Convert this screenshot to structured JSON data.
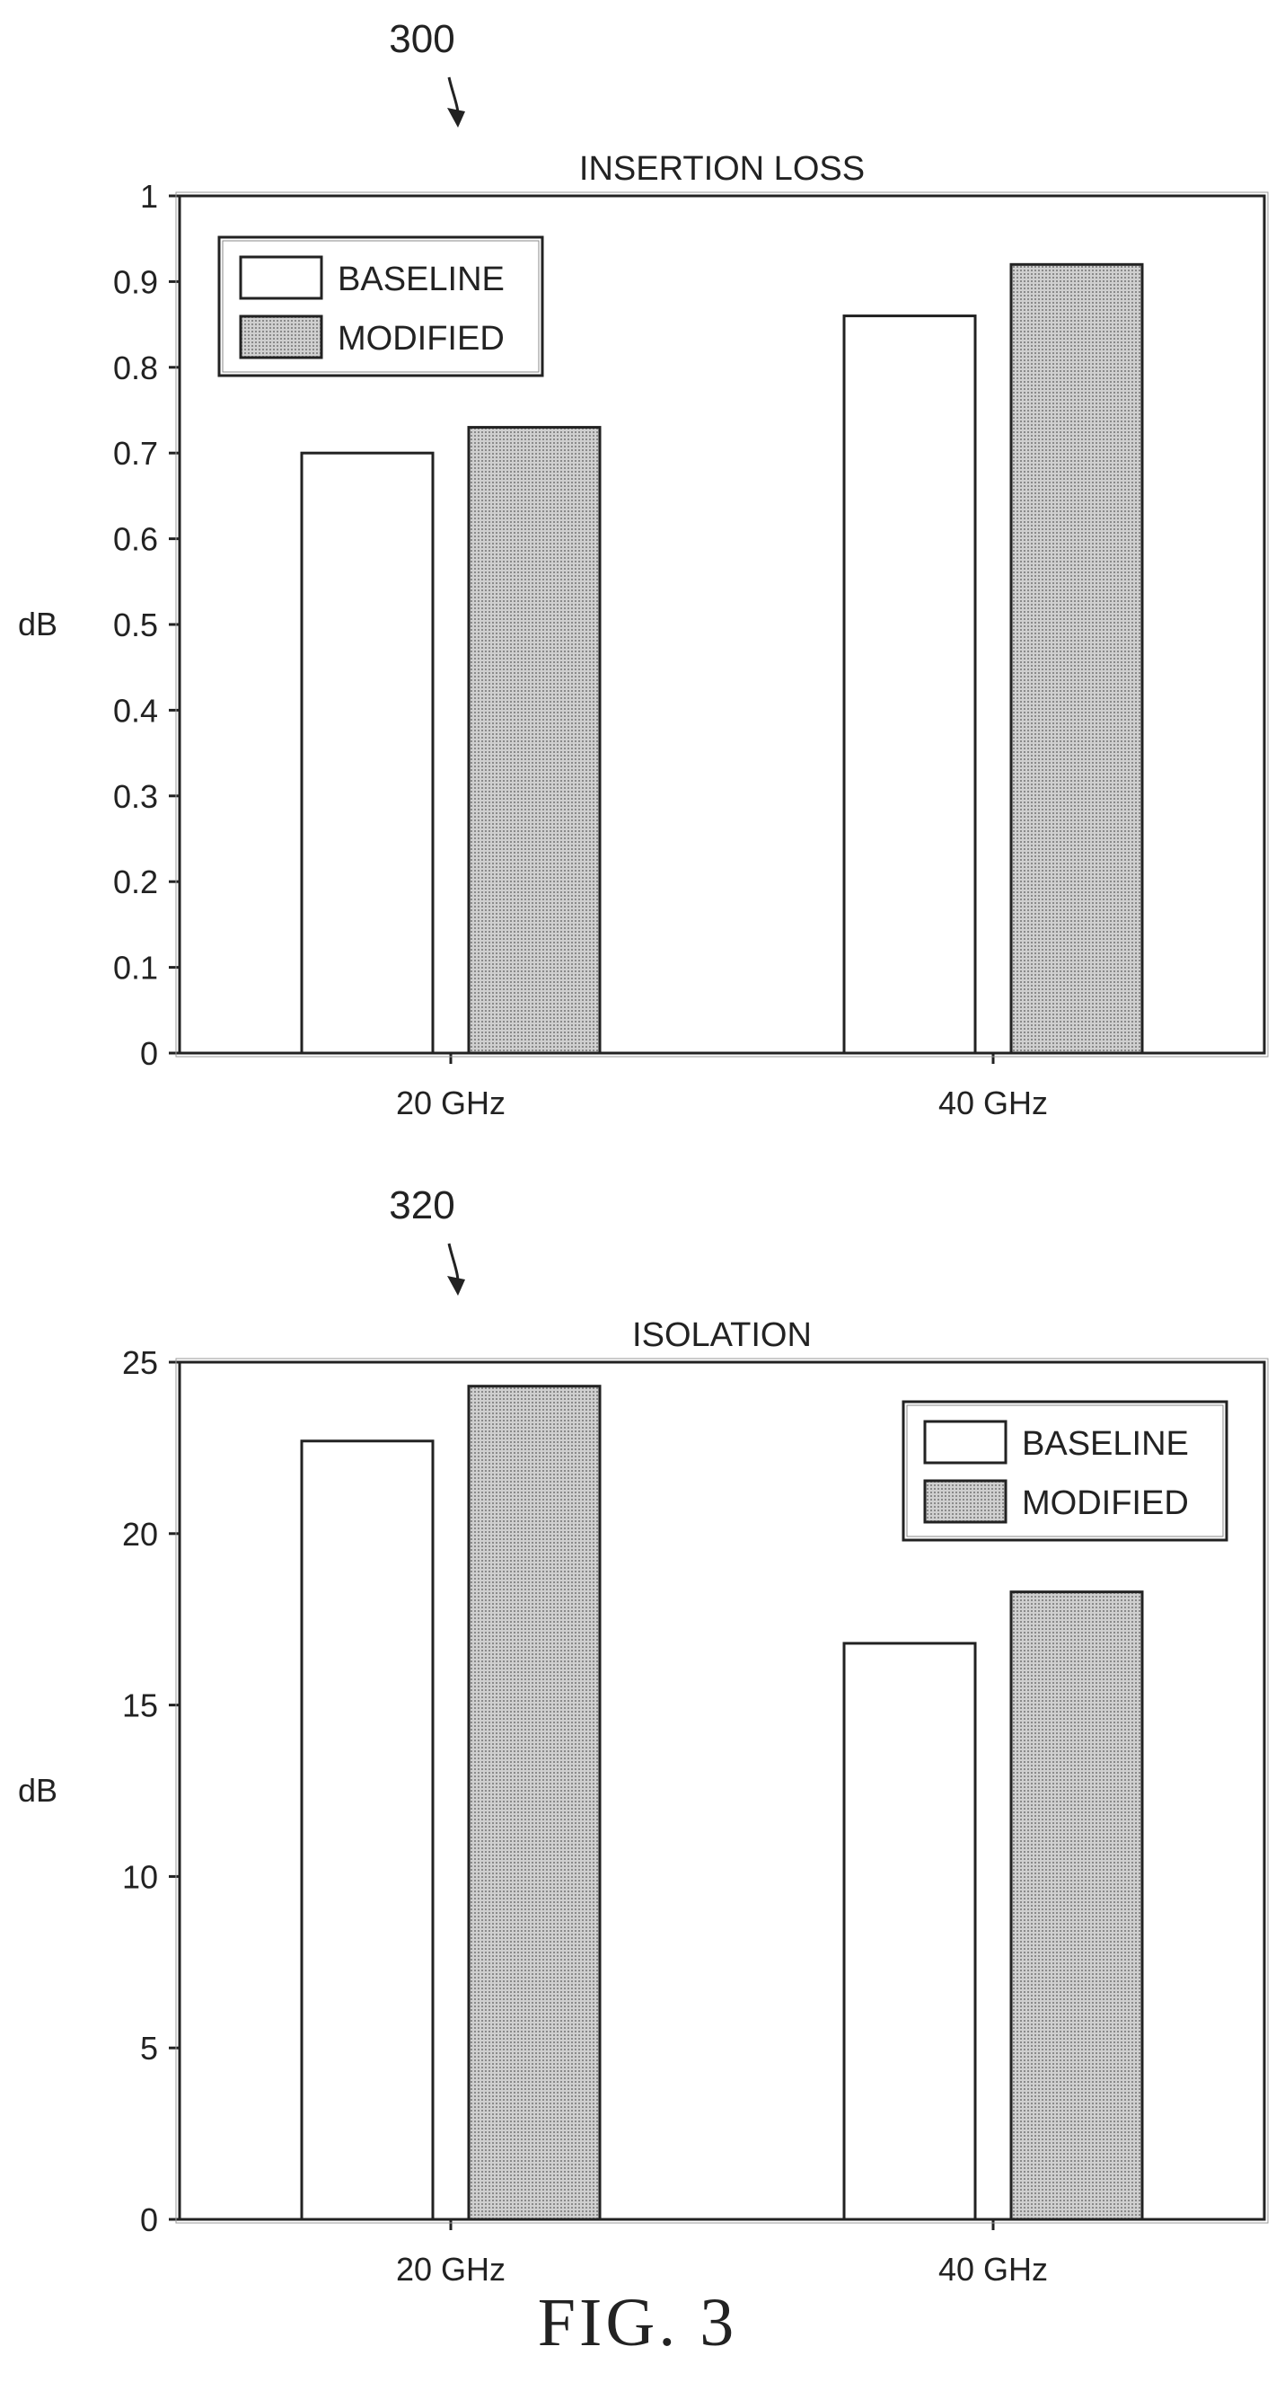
{
  "figure": {
    "caption": "FIG. 3"
  },
  "patterns": {
    "modified_fill": "#c8c8c8",
    "baseline_fill": "#ffffff",
    "stroke": "#222222"
  },
  "chart_data": [
    {
      "ref": "300",
      "type": "bar",
      "title": "INSERTION LOSS",
      "xlabel": "",
      "ylabel": "dB",
      "categories": [
        "20 GHz",
        "40 GHz"
      ],
      "series": [
        {
          "name": "BASELINE",
          "values": [
            0.7,
            0.86
          ]
        },
        {
          "name": "MODIFIED",
          "values": [
            0.73,
            0.92
          ]
        }
      ],
      "ylim": [
        0,
        1
      ],
      "yticks": [
        0,
        0.1,
        0.2,
        0.3,
        0.4,
        0.5,
        0.6,
        0.7,
        0.8,
        0.9,
        1
      ],
      "ytick_labels": [
        "0",
        "0.1",
        "0.2",
        "0.3",
        "0.4",
        "0.5",
        "0.6",
        "0.7",
        "0.8",
        "0.9",
        "1"
      ],
      "grid": false,
      "legend": "top-left"
    },
    {
      "ref": "320",
      "type": "bar",
      "title": "ISOLATION",
      "xlabel": "",
      "ylabel": "dB",
      "categories": [
        "20 GHz",
        "40 GHz"
      ],
      "series": [
        {
          "name": "BASELINE",
          "values": [
            22.7,
            16.8
          ]
        },
        {
          "name": "MODIFIED",
          "values": [
            24.3,
            18.3
          ]
        }
      ],
      "ylim": [
        0,
        25
      ],
      "yticks": [
        0,
        5,
        10,
        15,
        20,
        25
      ],
      "ytick_labels": [
        "0",
        "5",
        "10",
        "15",
        "20",
        "25"
      ],
      "grid": false,
      "legend": "top-right"
    }
  ]
}
